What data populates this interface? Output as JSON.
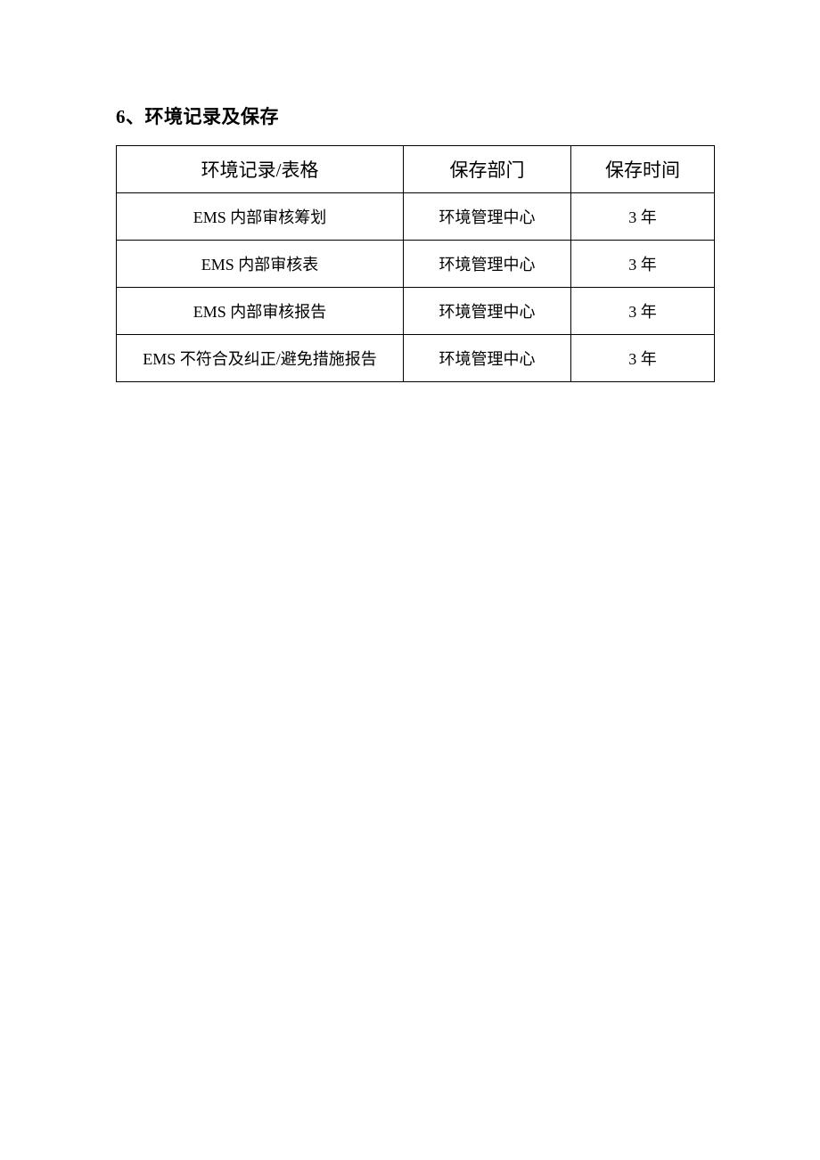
{
  "heading": "6、环境记录及保存",
  "table": {
    "type": "table",
    "columns": [
      {
        "label": "环境记录/表格",
        "width_pct": 48
      },
      {
        "label": "保存部门",
        "width_pct": 28
      },
      {
        "label": "保存时间",
        "width_pct": 24
      }
    ],
    "rows": [
      [
        "EMS 内部审核筹划",
        "环境管理中心",
        "3 年"
      ],
      [
        "EMS 内部审核表",
        "环境管理中心",
        "3 年"
      ],
      [
        "EMS 内部审核报告",
        "环境管理中心",
        "3 年"
      ],
      [
        "EMS 不符合及纠正/避免措施报告",
        "环境管理中心",
        "3 年"
      ]
    ],
    "header_fontsize": 21,
    "body_fontsize": 18,
    "border_color": "#000000",
    "text_color": "#000000",
    "background_color": "#ffffff"
  },
  "page": {
    "background_color": "#ffffff",
    "heading_fontsize": 21
  }
}
